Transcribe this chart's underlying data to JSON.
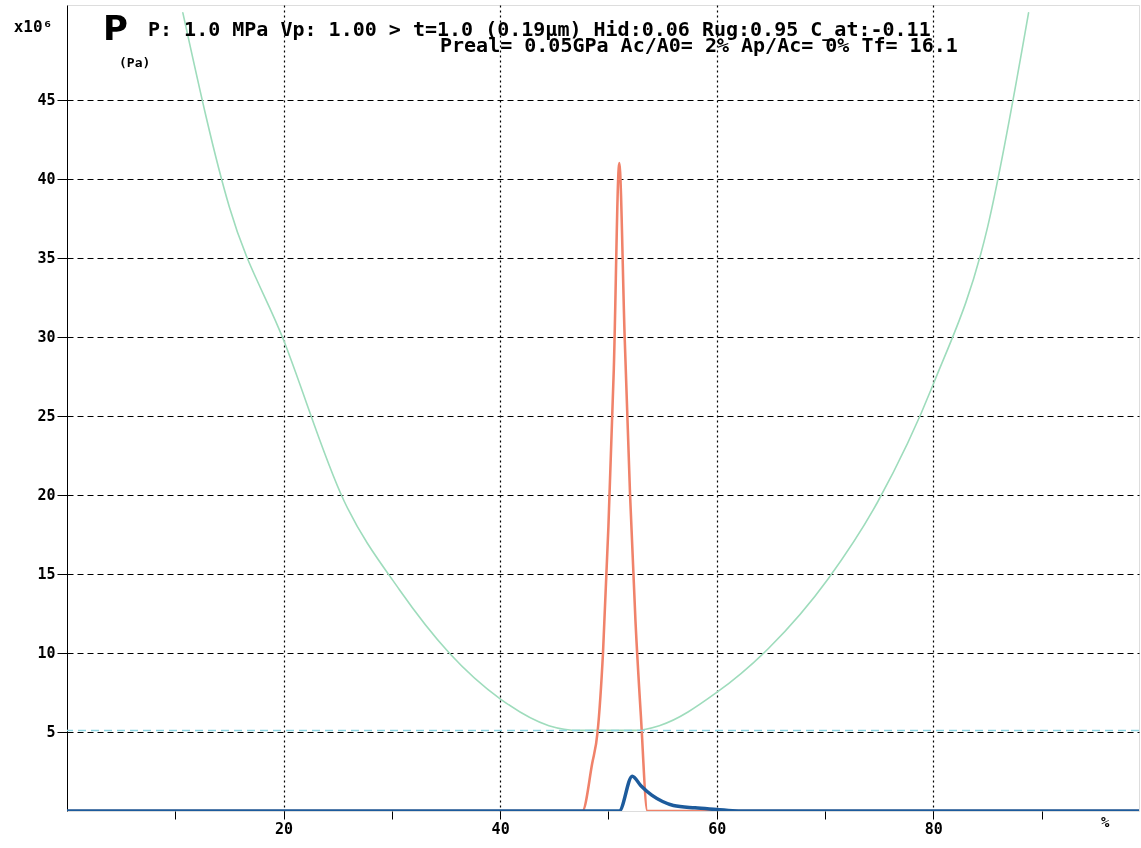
{
  "chart_data": {
    "type": "line",
    "title": "P: 1.0 MPa Vp: 1.00 > t=1.0 (0.19μm)  Hid:0.06 Rug:0.95 C_at:-0.11",
    "subtitle": "Preal= 0.05GPa Ac/A0=  2% Ap/Ac=  0% Tf=  16.1",
    "ylabel": "P",
    "xlabel": "%",
    "annotations": [
      "(Pa)",
      "x10⁶"
    ],
    "series": [
      {
        "color": "#9edcbc",
        "x": [
          10.7,
          15,
          20,
          25.6,
          30.7,
          35.3,
          40,
          44.5,
          47.3,
          50,
          52.5,
          54.7,
          60,
          64.8,
          70.3,
          74.9,
          80,
          85,
          88.8
        ],
        "values": [
          50.5,
          38.2,
          29.8,
          19.6,
          14,
          10,
          7.1,
          5.4,
          5.1,
          5.1,
          5.1,
          5.4,
          7.5,
          10.3,
          14.7,
          19.6,
          27,
          36.9,
          50.5
        ]
      },
      {
        "color": "#f0826a",
        "x": [
          0,
          47.6,
          48.5,
          49,
          49.5,
          50,
          50.5,
          51,
          51.5,
          52,
          52.5,
          53,
          53.6,
          99
        ],
        "values": [
          0,
          0,
          3,
          5,
          10,
          18,
          28,
          41,
          30,
          20,
          12,
          6,
          0,
          0
        ]
      },
      {
        "color": "#1d5b9c",
        "x": [
          0,
          51,
          52.2,
          53,
          54,
          55,
          56,
          58,
          60,
          62,
          99
        ],
        "values": [
          0,
          0,
          2.2,
          1.6,
          1.0,
          0.6,
          0.35,
          0.2,
          0.1,
          0,
          0
        ]
      }
    ],
    "xlim": [
      0,
      99
    ],
    "ylim": [
      0,
      51
    ],
    "xticks": [
      {
        "value": 10,
        "label": null
      },
      20,
      {
        "value": 30,
        "label": null
      },
      40,
      {
        "value": 50,
        "label": null
      },
      60,
      {
        "value": 70,
        "label": null
      },
      80,
      {
        "value": 90,
        "label": null
      }
    ],
    "yticks": [
      5,
      10,
      15,
      20,
      25,
      30,
      35,
      40,
      45
    ],
    "ref_lines": [
      {
        "axis": "y",
        "value": 5.1,
        "color": "#8fd6e2",
        "line_style": "dashed"
      }
    ],
    "grid": true,
    "marker": "none",
    "line_style": "solid"
  }
}
